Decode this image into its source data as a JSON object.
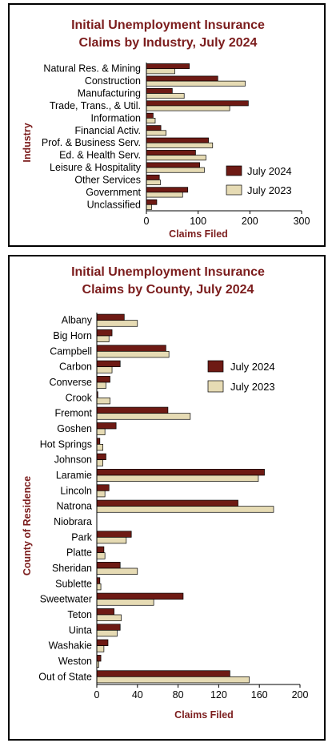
{
  "colors": {
    "july_2024": "#6e1a14",
    "july_2023": "#e6dbb4",
    "title": "#7b1c1c"
  },
  "chart_data": [
    {
      "type": "bar",
      "orientation": "horizontal",
      "title": "Initial Unemployment Insurance Claims by Industry, July 2024",
      "title_lines": [
        "Initial Unemployment Insurance",
        "Claims by Industry, July 2024"
      ],
      "xlabel": "Claims Filed",
      "ylabel": "Industry",
      "xlim": [
        0,
        300
      ],
      "xticks": [
        "0",
        "100",
        "200",
        "300"
      ],
      "legend_position": "right",
      "categories": [
        "Natural Res. & Mining",
        "Construction",
        "Manufacturing",
        "Trade, Trans., & Util.",
        "Information",
        "Financial Activ.",
        "Prof. & Business Serv.",
        "Ed. & Health Serv.",
        "Leisure & Hospitality",
        "Other Services",
        "Government",
        "Unclassified"
      ],
      "series": [
        {
          "name": "July 2024",
          "values": [
            83,
            138,
            50,
            197,
            13,
            28,
            120,
            95,
            103,
            25,
            80,
            20
          ]
        },
        {
          "name": "July 2023",
          "values": [
            55,
            191,
            73,
            161,
            17,
            38,
            128,
            115,
            112,
            27,
            70,
            10
          ]
        }
      ]
    },
    {
      "type": "bar",
      "orientation": "horizontal",
      "title": "Initial Unemployment Insurance Claims by County, July 2024",
      "title_lines": [
        "Initial Unemployment Insurance",
        "Claims by County, July 2024"
      ],
      "xlabel": "Claims Filed",
      "ylabel": "County of Residence",
      "xlim": [
        0,
        200
      ],
      "xticks": [
        "0",
        "40",
        "80",
        "120",
        "160",
        "200"
      ],
      "legend_position": "top-right",
      "categories": [
        "Albany",
        "Big Horn",
        "Campbell",
        "Carbon",
        "Converse",
        "Crook",
        "Fremont",
        "Goshen",
        "Hot Springs",
        "Johnson",
        "Laramie",
        "Lincoln",
        "Natrona",
        "Niobrara",
        "Park",
        "Platte",
        "Sheridan",
        "Sublette",
        "Sweetwater",
        "Teton",
        "Uinta",
        "Washakie",
        "Weston",
        "Out of State"
      ],
      "series": [
        {
          "name": "July 2024",
          "values": [
            27,
            15,
            68,
            23,
            13,
            1,
            70,
            19,
            3,
            9,
            165,
            12,
            139,
            0,
            34,
            7,
            23,
            3,
            85,
            17,
            23,
            11,
            4,
            131
          ]
        },
        {
          "name": "July 2023",
          "values": [
            40,
            12,
            71,
            15,
            9,
            13,
            92,
            8,
            6,
            6,
            159,
            8,
            174,
            0,
            29,
            8,
            40,
            4,
            56,
            24,
            20,
            7,
            2,
            150
          ]
        }
      ]
    }
  ]
}
